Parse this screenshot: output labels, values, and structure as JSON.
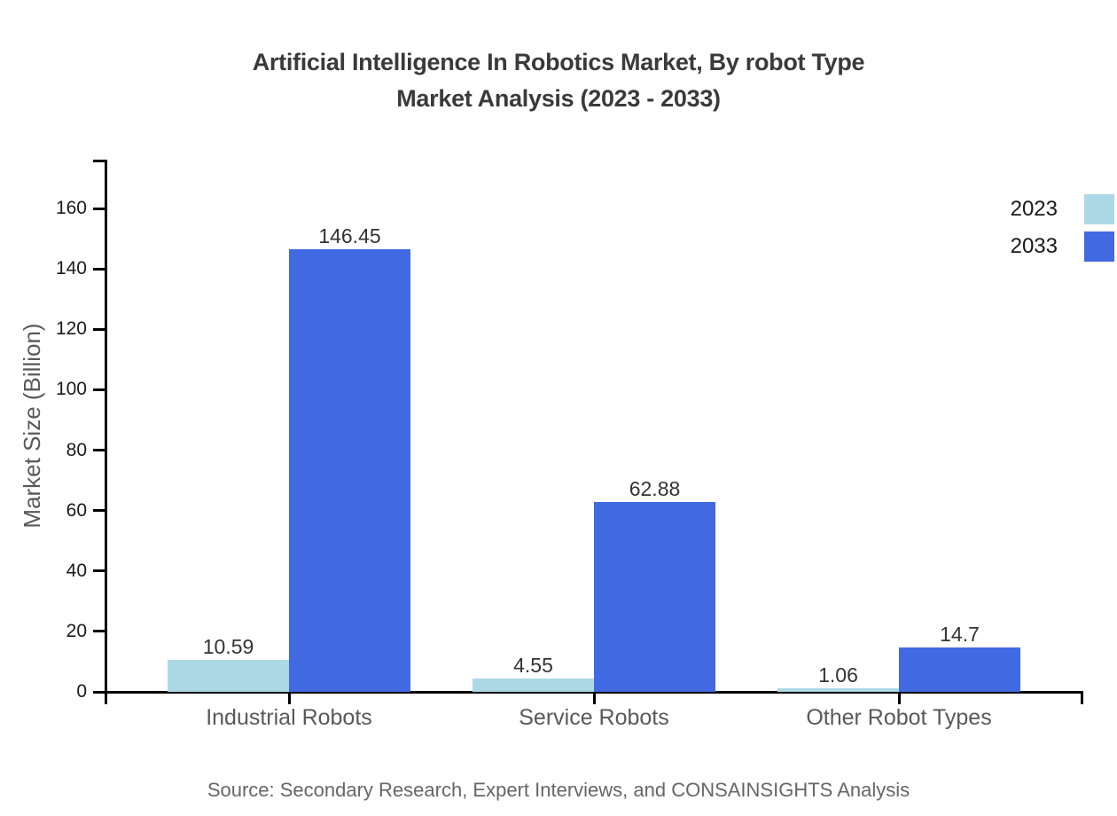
{
  "title": {
    "line1": "Artificial Intelligence In Robotics Market, By robot Type",
    "line2": "Market Analysis (2023 - 2033)"
  },
  "axes": {
    "y_label": "Market Size (Billion)"
  },
  "footer": {
    "source": "Source: Secondary Research, Expert Interviews, and CONSAINSIGHTS Analysis"
  },
  "colors": {
    "bar_2023": "#ADD8E6",
    "bar_2033": "#4169E1",
    "axis": "#000000",
    "title_text": "#3A3A3A",
    "muted_text": "#595959",
    "value_text": "#333333",
    "source_text": "#666666"
  },
  "chart_data": {
    "type": "bar",
    "title": "Artificial Intelligence In Robotics Market, By robot Type Market Analysis (2023 - 2033)",
    "categories": [
      "Industrial Robots",
      "Service Robots",
      "Other Robot Types"
    ],
    "series": [
      {
        "name": "2023",
        "color": "#ADD8E6",
        "values": [
          10.59,
          4.55,
          1.06
        ]
      },
      {
        "name": "2033",
        "color": "#4169E1",
        "values": [
          146.45,
          62.88,
          14.7
        ]
      }
    ],
    "value_labels": [
      "10.59",
      "146.45",
      "4.55",
      "62.88",
      "1.06",
      "14.7"
    ],
    "xlabel": "",
    "ylabel": "Market Size (Billion)",
    "ylim": [
      0,
      176
    ],
    "yticks": [
      0,
      20,
      40,
      60,
      80,
      100,
      120,
      140,
      160
    ],
    "grid": false,
    "legend_position": "top-right",
    "legend_entries": [
      "2023",
      "2033"
    ]
  }
}
